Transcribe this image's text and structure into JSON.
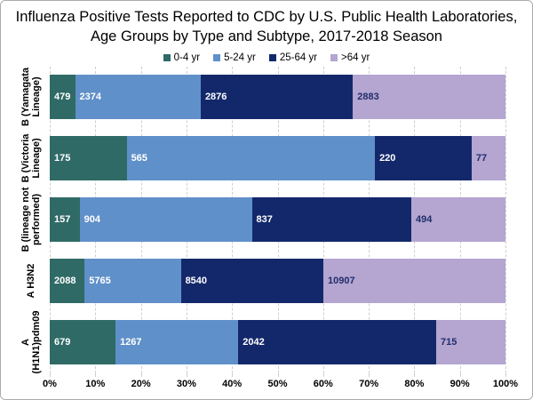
{
  "title": "Influenza Positive Tests Reported to CDC by U.S. Public Health Laboratories, Age Groups by Type and Subtype, 2017-2018 Season",
  "chart_data": {
    "type": "bar",
    "variant": "horizontal-100pct-stacked",
    "title": "Influenza Positive Tests Reported to CDC by U.S. Public Health Laboratories, Age Groups by Type and Subtype, 2017-2018 Season",
    "legend_position": "top",
    "categories": [
      "B (Yamagata Lineage)",
      "B (Victoria Lineage)",
      "B (lineage not performed)",
      "A H3N2",
      "A (H1N1)pdm09"
    ],
    "category_label_lines": [
      [
        "B (Yamagata",
        "Lineage)"
      ],
      [
        "B (Victoria",
        "Lineage)"
      ],
      [
        "B (lineage not",
        "performed)"
      ],
      [
        "A H3N2"
      ],
      [
        "A",
        "(H1N1)pdm09"
      ]
    ],
    "series": [
      {
        "name": "0-4 yr",
        "color": "#2f6a66",
        "label_color": "#ffffff",
        "values": [
          479,
          175,
          157,
          2088,
          679
        ]
      },
      {
        "name": "5-24 yr",
        "color": "#6090c9",
        "label_color": "#ffffff",
        "values": [
          2374,
          565,
          904,
          5765,
          1267
        ]
      },
      {
        "name": "25-64 yr",
        "color": "#13286b",
        "label_color": "#ffffff",
        "values": [
          2876,
          220,
          837,
          8540,
          2042
        ]
      },
      {
        "name": ">64 yr",
        "color": "#b4a5d1",
        "label_color": "#1f2e6b",
        "values": [
          2883,
          77,
          494,
          10907,
          715
        ]
      }
    ],
    "x_axis": {
      "min": 0,
      "max": 100,
      "tick_labels": [
        "0%",
        "10%",
        "20%",
        "30%",
        "40%",
        "50%",
        "60%",
        "70%",
        "80%",
        "90%",
        "100%"
      ],
      "gridlines": "dashed-vertical"
    }
  }
}
